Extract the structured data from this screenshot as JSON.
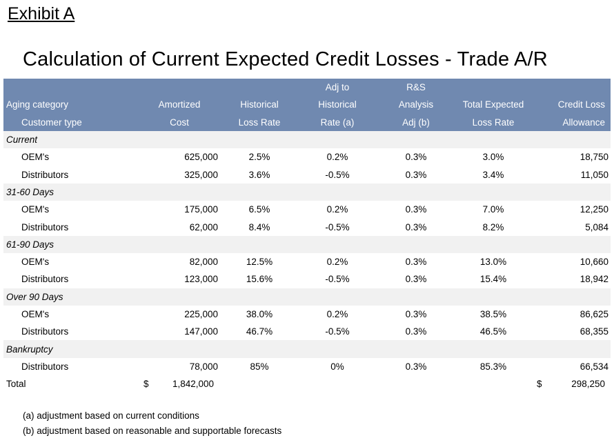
{
  "exhibit": "Exhibit A",
  "title": "Calculation of Current Expected Credit Losses - Trade A/R",
  "header": {
    "col1": [
      "",
      "Aging category",
      "Customer type"
    ],
    "col2": [
      "",
      "Amortized",
      "Cost"
    ],
    "col3": [
      "",
      "Historical",
      "Loss Rate"
    ],
    "col4": [
      "Adj to",
      "Historical",
      "Rate (a)"
    ],
    "col5": [
      "R&S",
      "Analysis",
      "Adj (b)"
    ],
    "col6": [
      "",
      "Total Expected",
      "Loss Rate"
    ],
    "col7": [
      "",
      "Credit Loss",
      "Allowance"
    ]
  },
  "rows": [
    {
      "type": "cat",
      "label": "Current"
    },
    {
      "type": "sub",
      "label": "OEM's",
      "cost": "625,000",
      "hist": "2.5%",
      "adj": "0.2%",
      "rs": "0.3%",
      "total": "3.0%",
      "allow": "18,750"
    },
    {
      "type": "sub",
      "label": "Distributors",
      "cost": "325,000",
      "hist": "3.6%",
      "adj": "-0.5%",
      "rs": "0.3%",
      "total": "3.4%",
      "allow": "11,050"
    },
    {
      "type": "cat",
      "label": "31-60 Days"
    },
    {
      "type": "sub",
      "label": "OEM's",
      "cost": "175,000",
      "hist": "6.5%",
      "adj": "0.2%",
      "rs": "0.3%",
      "total": "7.0%",
      "allow": "12,250"
    },
    {
      "type": "sub",
      "label": "Distributors",
      "cost": "62,000",
      "hist": "8.4%",
      "adj": "-0.5%",
      "rs": "0.3%",
      "total": "8.2%",
      "allow": "5,084"
    },
    {
      "type": "cat",
      "label": "61-90 Days"
    },
    {
      "type": "sub",
      "label": "OEM's",
      "cost": "82,000",
      "hist": "12.5%",
      "adj": "0.2%",
      "rs": "0.3%",
      "total": "13.0%",
      "allow": "10,660"
    },
    {
      "type": "sub",
      "label": "Distributors",
      "cost": "123,000",
      "hist": "15.6%",
      "adj": "-0.5%",
      "rs": "0.3%",
      "total": "15.4%",
      "allow": "18,942"
    },
    {
      "type": "cat",
      "label": "Over 90 Days"
    },
    {
      "type": "sub",
      "label": "OEM's",
      "cost": "225,000",
      "hist": "38.0%",
      "adj": "0.2%",
      "rs": "0.3%",
      "total": "38.5%",
      "allow": "86,625"
    },
    {
      "type": "sub",
      "label": "Distributors",
      "cost": "147,000",
      "hist": "46.7%",
      "adj": "-0.5%",
      "rs": "0.3%",
      "total": "46.5%",
      "allow": "68,355"
    },
    {
      "type": "cat",
      "label": "Bankruptcy"
    },
    {
      "type": "sub",
      "label": "Distributors",
      "cost": "78,000",
      "hist": "85%",
      "adj": "0%",
      "rs": "0.3%",
      "total": "85.3%",
      "allow": "66,534"
    }
  ],
  "total": {
    "label": "Total",
    "currency": "$",
    "cost": "1,842,000",
    "allow": "298,250"
  },
  "footnotes": [
    "(a) adjustment based on current conditions",
    "(b) adjustment based on reasonable and supportable forecasts"
  ],
  "colors": {
    "header_bg": "#7089b0",
    "category_bg": "#f1f1f1"
  }
}
